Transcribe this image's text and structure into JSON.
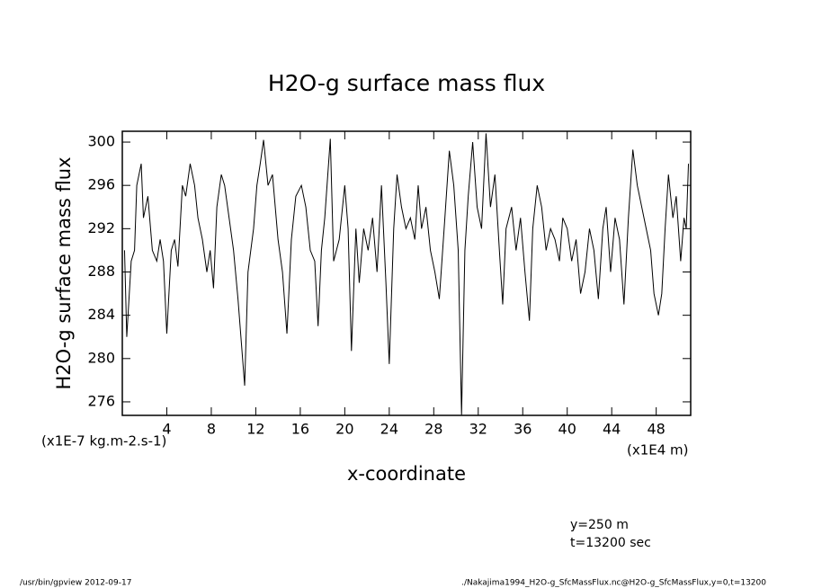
{
  "chart_data": {
    "type": "line",
    "title": "H2O-g surface mass flux",
    "y_label": "H2O-g surface mass flux",
    "x_label": "x-coordinate",
    "y_units": "(x1E-7 kg.m-2.s-1)",
    "x_units": "(x1E4 m)",
    "annotations": [
      "y=250 m",
      "t=13200 sec"
    ],
    "footer_left": "/usr/bin/gpview  2012-09-17",
    "footer_right": "./Nakajima1994_H2O-g_SfcMassFlux.nc@H2O-g_SfcMassFlux,y=0,t=13200",
    "xlim": [
      0,
      51.1
    ],
    "ylim": [
      274.75,
      301
    ],
    "xticks": [
      4,
      8,
      12,
      16,
      20,
      24,
      28,
      32,
      36,
      40,
      44,
      48
    ],
    "yticks": [
      276,
      280,
      284,
      288,
      292,
      296,
      300
    ],
    "color": "#000000",
    "x": [
      0.2,
      0.4,
      0.8,
      1.1,
      1.3,
      1.7,
      1.9,
      2.3,
      2.7,
      3.1,
      3.4,
      3.7,
      4.0,
      4.4,
      4.7,
      5.0,
      5.4,
      5.7,
      6.1,
      6.5,
      6.8,
      7.2,
      7.6,
      7.9,
      8.2,
      8.5,
      8.9,
      9.2,
      9.6,
      10.0,
      10.4,
      11.0,
      11.3,
      11.8,
      12.1,
      12.4,
      12.7,
      13.1,
      13.5,
      14.0,
      14.4,
      14.8,
      15.2,
      15.6,
      16.1,
      16.5,
      16.9,
      17.3,
      17.6,
      17.9,
      18.2,
      18.7,
      19.0,
      19.5,
      20.0,
      20.3,
      20.6,
      21.0,
      21.3,
      21.7,
      22.1,
      22.5,
      22.9,
      23.3,
      23.7,
      24.0,
      24.4,
      24.7,
      25.1,
      25.5,
      25.9,
      26.3,
      26.6,
      26.9,
      27.3,
      27.7,
      28.1,
      28.5,
      29.0,
      29.4,
      29.8,
      30.2,
      30.5,
      30.8,
      31.1,
      31.5,
      31.9,
      32.3,
      32.7,
      33.1,
      33.5,
      33.9,
      34.2,
      34.5,
      35.0,
      35.4,
      35.8,
      36.2,
      36.6,
      36.9,
      37.3,
      37.7,
      38.1,
      38.5,
      38.9,
      39.3,
      39.6,
      40.0,
      40.4,
      40.8,
      41.2,
      41.6,
      42.0,
      42.4,
      42.8,
      43.2,
      43.5,
      43.9,
      44.3,
      44.7,
      45.1,
      45.5,
      45.9,
      46.3,
      46.7,
      47.1,
      47.5,
      47.8,
      48.2,
      48.5,
      48.8,
      49.1,
      49.5,
      49.8,
      50.2,
      50.5,
      50.7,
      50.9
    ],
    "values": [
      290,
      282,
      289,
      290,
      296,
      298,
      293,
      295,
      290,
      289,
      291,
      289,
      282.3,
      290,
      291,
      288.5,
      296,
      295,
      298,
      296,
      293,
      291,
      288,
      290,
      286.5,
      294,
      297,
      296,
      293,
      290,
      285.5,
      277.5,
      288,
      292,
      296,
      298,
      300.2,
      296,
      297,
      291,
      288,
      282.3,
      291,
      295,
      296,
      294,
      290,
      289,
      283,
      290,
      293,
      300.3,
      289,
      291,
      296,
      292,
      280.7,
      292,
      287,
      292,
      290,
      293,
      288,
      296,
      287,
      279.5,
      292,
      297,
      294,
      292,
      293,
      291,
      296,
      292,
      294,
      290,
      288,
      285.5,
      293,
      299.2,
      296,
      290,
      274.8,
      290,
      295,
      300,
      294,
      292,
      300.8,
      294,
      297,
      290,
      285,
      292,
      294,
      290,
      293,
      288,
      283.5,
      292,
      296,
      294,
      290,
      292,
      291,
      289,
      293,
      292,
      289,
      291,
      286,
      288,
      292,
      290,
      285.5,
      292,
      294,
      288,
      293,
      291,
      285,
      293,
      299.3,
      296,
      294,
      292,
      290,
      286,
      284,
      286,
      292,
      297,
      293,
      295,
      289,
      293,
      292,
      298
    ]
  }
}
